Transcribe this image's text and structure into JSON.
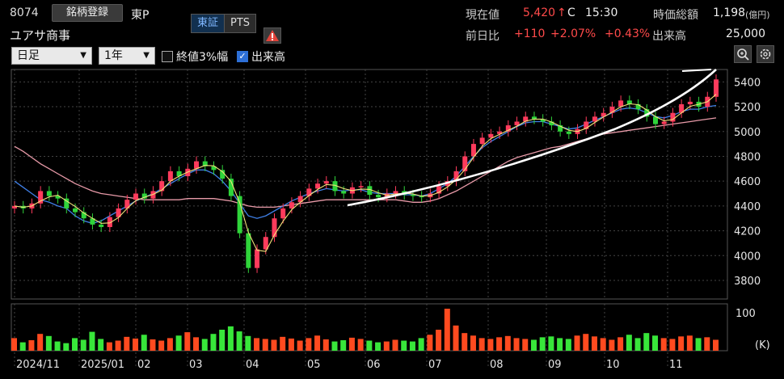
{
  "header": {
    "code": "8074",
    "register_button": "銘柄登録",
    "market": "東P",
    "company": "ユアサ商事",
    "exchange_tabs": [
      "東証",
      "PTS"
    ],
    "current_price_label": "現在値",
    "current_price": "5,420",
    "price_arrow": "↑",
    "price_flag": "C",
    "time": "15:30",
    "market_cap_label": "時価総額",
    "market_cap": "1,198",
    "market_cap_unit": "(億円)",
    "prev_label": "前日比",
    "change": "+110",
    "change_pct": "+2.07%",
    "change_pct2": "+0.43%",
    "volume_label": "出来高",
    "volume": "25,000"
  },
  "controls": {
    "period": "日足",
    "range": "1年",
    "close3_label": "終値3%幅",
    "close3_checked": false,
    "volume_label": "出来高",
    "volume_checked": true
  },
  "icons": {
    "warning": "warning-icon",
    "zoom": "zoom-icon",
    "settings": "settings-icon"
  },
  "chart_data": {
    "type": "candlestick",
    "price_ticks": [
      "5400",
      "5200",
      "5000",
      "4800",
      "4600",
      "4400",
      "4200",
      "4000",
      "3800"
    ],
    "price_range": [
      3650,
      5500
    ],
    "x_labels": [
      "2024/11",
      "2025/01",
      "02",
      "03",
      "04",
      "05",
      "06",
      "07",
      "08",
      "09",
      "10",
      "11"
    ],
    "volume_tick": "100",
    "volume_unit": "(K)",
    "close_path": [
      4400,
      4380,
      4420,
      4520,
      4480,
      4460,
      4380,
      4350,
      4300,
      4250,
      4230,
      4310,
      4380,
      4450,
      4500,
      4460,
      4520,
      4600,
      4680,
      4640,
      4700,
      4760,
      4720,
      4690,
      4620,
      4480,
      4180,
      3900,
      4050,
      4150,
      4300,
      4380,
      4430,
      4480,
      4540,
      4580,
      4600,
      4520,
      4500,
      4550,
      4560,
      4490,
      4470,
      4500,
      4520,
      4490,
      4480,
      4470,
      4500,
      4560,
      4600,
      4680,
      4800,
      4900,
      4950,
      4980,
      5000,
      5050,
      5080,
      5120,
      5100,
      5080,
      5050,
      5000,
      4980,
      5020,
      5080,
      5120,
      5150,
      5200,
      5250,
      5220,
      5180,
      5120,
      5060,
      5080,
      5150,
      5220,
      5240,
      5200,
      5280,
      5420
    ],
    "ma_short": [
      4600,
      4550,
      4500,
      4450,
      4430,
      4400,
      4380,
      4320,
      4280,
      4260,
      4280,
      4320,
      4360,
      4400,
      4440,
      4470,
      4500,
      4540,
      4580,
      4620,
      4660,
      4690,
      4690,
      4660,
      4600,
      4520,
      4420,
      4320,
      4300,
      4320,
      4360,
      4400,
      4440,
      4470,
      4500,
      4520,
      4540,
      4530,
      4520,
      4530,
      4530,
      4510,
      4500,
      4500,
      4500,
      4490,
      4490,
      4480,
      4500,
      4540,
      4580,
      4640,
      4720,
      4800,
      4870,
      4920,
      4960,
      5000,
      5040,
      5070,
      5080,
      5080,
      5060,
      5040,
      5020,
      5030,
      5060,
      5090,
      5120,
      5150,
      5180,
      5190,
      5180,
      5150,
      5120,
      5110,
      5130,
      5160,
      5180,
      5180,
      5200,
      5210
    ],
    "ma_long": [
      4880,
      4840,
      4790,
      4740,
      4700,
      4660,
      4620,
      4580,
      4550,
      4520,
      4500,
      4490,
      4480,
      4470,
      4460,
      4450,
      4450,
      4450,
      4450,
      4450,
      4460,
      4460,
      4460,
      4460,
      4450,
      4440,
      4420,
      4400,
      4390,
      4390,
      4390,
      4400,
      4410,
      4420,
      4430,
      4440,
      4450,
      4450,
      4450,
      4450,
      4450,
      4450,
      4450,
      4450,
      4450,
      4440,
      4430,
      4430,
      4440,
      4460,
      4490,
      4520,
      4560,
      4600,
      4640,
      4680,
      4720,
      4760,
      4790,
      4810,
      4830,
      4850,
      4870,
      4880,
      4900,
      4920,
      4940,
      4960,
      4980,
      4990,
      5000,
      5010,
      5020,
      5030,
      5040,
      5050,
      5060,
      5070,
      5080,
      5090,
      5100,
      5110
    ],
    "volumes": [
      30,
      20,
      25,
      40,
      35,
      22,
      18,
      30,
      26,
      45,
      28,
      20,
      24,
      33,
      29,
      38,
      27,
      24,
      30,
      36,
      44,
      32,
      28,
      40,
      50,
      58,
      46,
      35,
      30,
      28,
      26,
      33,
      29,
      24,
      30,
      36,
      27,
      22,
      25,
      31,
      28,
      24,
      20,
      22,
      26,
      24,
      22,
      30,
      38,
      50,
      100,
      60,
      42,
      36,
      30,
      28,
      32,
      35,
      30,
      28,
      26,
      32,
      34,
      30,
      28,
      36,
      40,
      34,
      30,
      26,
      32,
      38,
      30,
      42,
      36,
      30,
      28,
      34,
      36,
      30,
      32,
      26
    ]
  }
}
